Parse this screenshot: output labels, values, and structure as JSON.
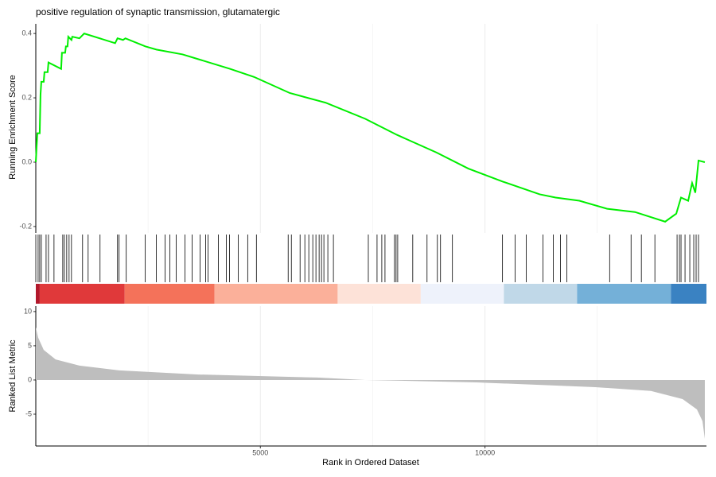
{
  "chart_data": [
    {
      "type": "line",
      "title": "positive regulation of synaptic transmission, glutamatergic",
      "ylabel": "Running Enrichment Score",
      "x": [
        1,
        35,
        88,
        106,
        124,
        177,
        194,
        265,
        283,
        565,
        583,
        654,
        671,
        707,
        724,
        795,
        813,
        972,
        1078,
        1767,
        1820,
        1943,
        1996,
        2438,
        2686,
        3269,
        3622,
        4329,
        4859,
        5654,
        6449,
        7332,
        8039,
        8922,
        9629,
        10389,
        11219,
        11572,
        12102,
        12721,
        13339,
        14011,
        14258,
        14364,
        14523,
        14611,
        14682,
        14753,
        14894
      ],
      "values": [
        0,
        0.09,
        0.09,
        0.21,
        0.25,
        0.25,
        0.28,
        0.28,
        0.31,
        0.29,
        0.34,
        0.34,
        0.36,
        0.36,
        0.39,
        0.38,
        0.39,
        0.385,
        0.4,
        0.37,
        0.385,
        0.38,
        0.385,
        0.36,
        0.35,
        0.335,
        0.32,
        0.29,
        0.265,
        0.215,
        0.185,
        0.135,
        0.085,
        0.03,
        -0.02,
        -0.06,
        -0.1,
        -0.11,
        -0.12,
        -0.145,
        -0.155,
        -0.185,
        -0.16,
        -0.11,
        -0.12,
        -0.065,
        -0.095,
        0.005,
        0
      ],
      "color": "#00ee00",
      "xlim": [
        1,
        14930
      ],
      "xticks": [
        5000,
        10000
      ],
      "xgrid_minor": [
        2500,
        7500,
        12500
      ],
      "ylim": [
        -0.22,
        0.43
      ],
      "yticks": [
        -0.2,
        {
          "value": 0,
          "label": "0.0"
        },
        0.2,
        0.4
      ],
      "grid": true
    },
    {
      "type": "rug",
      "xlim": [
        1,
        14930
      ],
      "color": "#000000",
      "x": [
        1,
        53,
        88,
        124,
        230,
        283,
        406,
        601,
        636,
        689,
        742,
        795,
        1042,
        1166,
        1431,
        1820,
        1855,
        2014,
        2438,
        2686,
        2880,
        2986,
        3128,
        3322,
        3481,
        3658,
        3781,
        3834,
        4064,
        4241,
        4312,
        4506,
        4718,
        4912,
        5619,
        5690,
        5884,
        5990,
        6078,
        6167,
        6237,
        6308,
        6361,
        6414,
        6502,
        6626,
        7403,
        7597,
        7703,
        7774,
        7986,
        8021,
        8057,
        8392,
        8710,
        8940,
        9010,
        9275,
        10390,
        10672,
        10920,
        11291,
        11520,
        11679,
        11820,
        12775,
        13252,
        13481,
        13782,
        14276,
        14329,
        14364,
        14453,
        14559,
        14647,
        14700,
        14753
      ],
      "bands": [
        {
          "start": 1,
          "end": 88,
          "color": "#b2182b"
        },
        {
          "start": 88,
          "end": 1980,
          "color": "#e0393a"
        },
        {
          "start": 1980,
          "end": 3980,
          "color": "#f4725a"
        },
        {
          "start": 3980,
          "end": 6720,
          "color": "#fbb09a"
        },
        {
          "start": 6720,
          "end": 8570,
          "color": "#fde2d8"
        },
        {
          "start": 8570,
          "end": 10420,
          "color": "#eef2fb"
        },
        {
          "start": 10420,
          "end": 12050,
          "color": "#c0d8e8"
        },
        {
          "start": 12050,
          "end": 14140,
          "color": "#74b0d8"
        },
        {
          "start": 14140,
          "end": 14930,
          "color": "#3a82c2"
        }
      ]
    },
    {
      "type": "area",
      "ylabel": "Ranked List Metric",
      "xlabel": "Rank in Ordered Dataset",
      "x": [
        1,
        53,
        177,
        442,
        972,
        1855,
        3622,
        6273,
        7332,
        9806,
        12457,
        13694,
        14400,
        14718,
        14841,
        14894
      ],
      "values": [
        7.7,
        6.2,
        4.4,
        3.0,
        2.1,
        1.4,
        0.8,
        0.35,
        0,
        -0.35,
        -1.05,
        -1.6,
        -2.8,
        -4.3,
        -6.0,
        -8.6
      ],
      "color": "#bebebe",
      "xlim": [
        1,
        14930
      ],
      "xticks": [
        5000,
        10000
      ],
      "xgrid_minor": [
        2500,
        7500,
        12500
      ],
      "ylim": [
        -9.65,
        10.8
      ],
      "yticks": [
        -5,
        0,
        5,
        10
      ],
      "grid": true
    }
  ]
}
